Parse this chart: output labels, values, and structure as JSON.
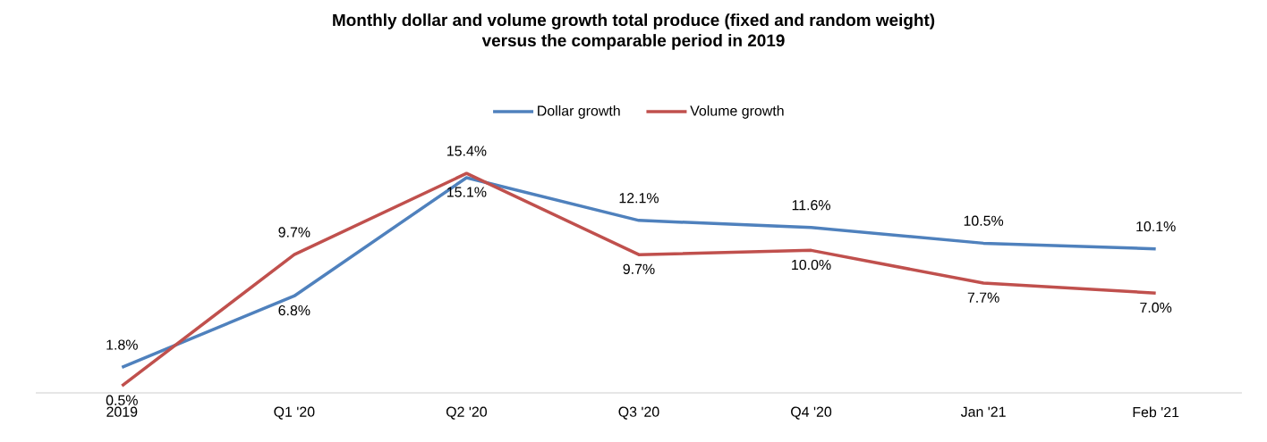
{
  "chart_data": {
    "type": "line",
    "title": "Monthly dollar and volume growth  total produce (fixed and random weight)\nversus the comparable period in 2019",
    "categories": [
      "2019",
      "Q1 '20",
      "Q2 '20",
      "Q3 '20",
      "Q4 '20",
      "Jan '21",
      "Feb '21"
    ],
    "series": [
      {
        "name": "Dollar growth",
        "color": "#4f81bd",
        "values": [
          1.8,
          6.8,
          15.1,
          12.1,
          11.6,
          10.5,
          10.1
        ],
        "value_labels": [
          "1.8%",
          "6.8%",
          "15.1%",
          "12.1%",
          "11.6%",
          "10.5%",
          "10.1%"
        ]
      },
      {
        "name": "Volume growth",
        "color": "#c0504d",
        "values": [
          0.5,
          9.7,
          15.4,
          9.7,
          10.0,
          7.7,
          7.0
        ],
        "value_labels": [
          "0.5%",
          "9.7%",
          "15.4%",
          "9.7%",
          "10.0%",
          "7.7%",
          "7.0%"
        ]
      }
    ],
    "tick_labels": "x",
    "legend": "top",
    "grid": false,
    "marker": "none",
    "line_style": "solid"
  }
}
